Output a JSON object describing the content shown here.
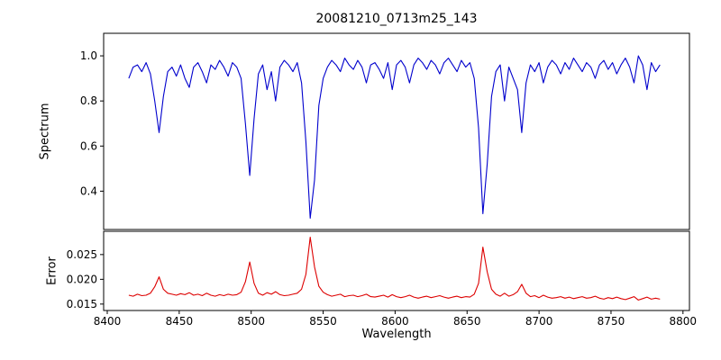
{
  "chart_data": {
    "type": "line",
    "title": "20081210_0713m25_143",
    "xlabel": "Wavelength",
    "x_start": 8415,
    "x_step": 3,
    "xlim": [
      8397.5,
      8804.5
    ],
    "xticks": [
      {
        "value": 8400,
        "label": "8400"
      },
      {
        "value": 8450,
        "label": "8450"
      },
      {
        "value": 8500,
        "label": "8500"
      },
      {
        "value": 8550,
        "label": "8550"
      },
      {
        "value": 8600,
        "label": "8600"
      },
      {
        "value": 8650,
        "label": "8650"
      },
      {
        "value": 8700,
        "label": "8700"
      },
      {
        "value": 8750,
        "label": "8750"
      },
      {
        "value": 8800,
        "label": "8800"
      }
    ],
    "background_color": "#ffffff",
    "grid": false,
    "legend": "none",
    "subplots": [
      {
        "name": "spectrum",
        "ylabel": "Spectrum",
        "color": "#0000cd",
        "ylim": [
          0.23,
          1.1
        ],
        "yticks": [
          {
            "value": 1.0,
            "label": "1.0"
          },
          {
            "value": 0.8,
            "label": "0.8"
          },
          {
            "value": 0.6,
            "label": "0.6"
          },
          {
            "value": 0.4,
            "label": "0.4"
          }
        ],
        "absorption_line_centers": [
          8435,
          8498,
          8542,
          8662,
          8688
        ],
        "values": [
          0.9,
          0.95,
          0.96,
          0.93,
          0.97,
          0.92,
          0.8,
          0.66,
          0.82,
          0.93,
          0.95,
          0.91,
          0.96,
          0.9,
          0.86,
          0.95,
          0.97,
          0.93,
          0.88,
          0.96,
          0.94,
          0.98,
          0.95,
          0.91,
          0.97,
          0.95,
          0.9,
          0.7,
          0.47,
          0.72,
          0.92,
          0.96,
          0.85,
          0.93,
          0.8,
          0.95,
          0.98,
          0.96,
          0.93,
          0.97,
          0.88,
          0.62,
          0.28,
          0.45,
          0.78,
          0.9,
          0.95,
          0.98,
          0.96,
          0.93,
          0.99,
          0.96,
          0.94,
          0.98,
          0.95,
          0.88,
          0.96,
          0.97,
          0.94,
          0.9,
          0.97,
          0.85,
          0.96,
          0.98,
          0.95,
          0.88,
          0.96,
          0.99,
          0.97,
          0.94,
          0.98,
          0.96,
          0.92,
          0.97,
          0.99,
          0.96,
          0.93,
          0.98,
          0.95,
          0.97,
          0.9,
          0.68,
          0.3,
          0.52,
          0.82,
          0.93,
          0.96,
          0.8,
          0.95,
          0.9,
          0.85,
          0.66,
          0.88,
          0.96,
          0.93,
          0.97,
          0.88,
          0.95,
          0.98,
          0.96,
          0.92,
          0.97,
          0.94,
          0.99,
          0.96,
          0.93,
          0.97,
          0.95,
          0.9,
          0.96,
          0.98,
          0.94,
          0.97,
          0.92,
          0.96,
          0.99,
          0.95,
          0.88,
          1.0,
          0.96,
          0.85,
          0.97,
          0.93,
          0.96
        ]
      },
      {
        "name": "error",
        "ylabel": "Error",
        "color": "#dd0000",
        "ylim": [
          0.0137,
          0.0297
        ],
        "yticks": [
          {
            "value": 0.025,
            "label": "0.025"
          },
          {
            "value": 0.02,
            "label": "0.020"
          },
          {
            "value": 0.015,
            "label": "0.015"
          }
        ],
        "values": [
          0.0168,
          0.0166,
          0.017,
          0.0167,
          0.0168,
          0.0172,
          0.0185,
          0.0205,
          0.018,
          0.0172,
          0.017,
          0.0168,
          0.0171,
          0.0169,
          0.0173,
          0.0168,
          0.017,
          0.0167,
          0.0172,
          0.0168,
          0.0166,
          0.0169,
          0.0167,
          0.017,
          0.0168,
          0.0169,
          0.0174,
          0.0195,
          0.0235,
          0.0192,
          0.0172,
          0.0168,
          0.0173,
          0.017,
          0.0175,
          0.0169,
          0.0167,
          0.0168,
          0.017,
          0.0172,
          0.018,
          0.021,
          0.0285,
          0.0225,
          0.0186,
          0.0174,
          0.0169,
          0.0166,
          0.0168,
          0.017,
          0.0165,
          0.0167,
          0.0168,
          0.0165,
          0.0167,
          0.017,
          0.0165,
          0.0164,
          0.0166,
          0.0168,
          0.0164,
          0.0169,
          0.0165,
          0.0163,
          0.0165,
          0.0168,
          0.0164,
          0.0162,
          0.0164,
          0.0166,
          0.0163,
          0.0165,
          0.0167,
          0.0164,
          0.0162,
          0.0164,
          0.0166,
          0.0163,
          0.0165,
          0.0164,
          0.017,
          0.0192,
          0.0265,
          0.0215,
          0.018,
          0.017,
          0.0166,
          0.0172,
          0.0166,
          0.0169,
          0.0175,
          0.019,
          0.0172,
          0.0165,
          0.0167,
          0.0163,
          0.0168,
          0.0164,
          0.0162,
          0.0163,
          0.0165,
          0.0162,
          0.0164,
          0.0161,
          0.0163,
          0.0165,
          0.0162,
          0.0163,
          0.0166,
          0.0162,
          0.016,
          0.0163,
          0.0161,
          0.0164,
          0.0161,
          0.0159,
          0.0162,
          0.0165,
          0.0158,
          0.0161,
          0.0164,
          0.016,
          0.0162,
          0.016
        ]
      }
    ]
  }
}
